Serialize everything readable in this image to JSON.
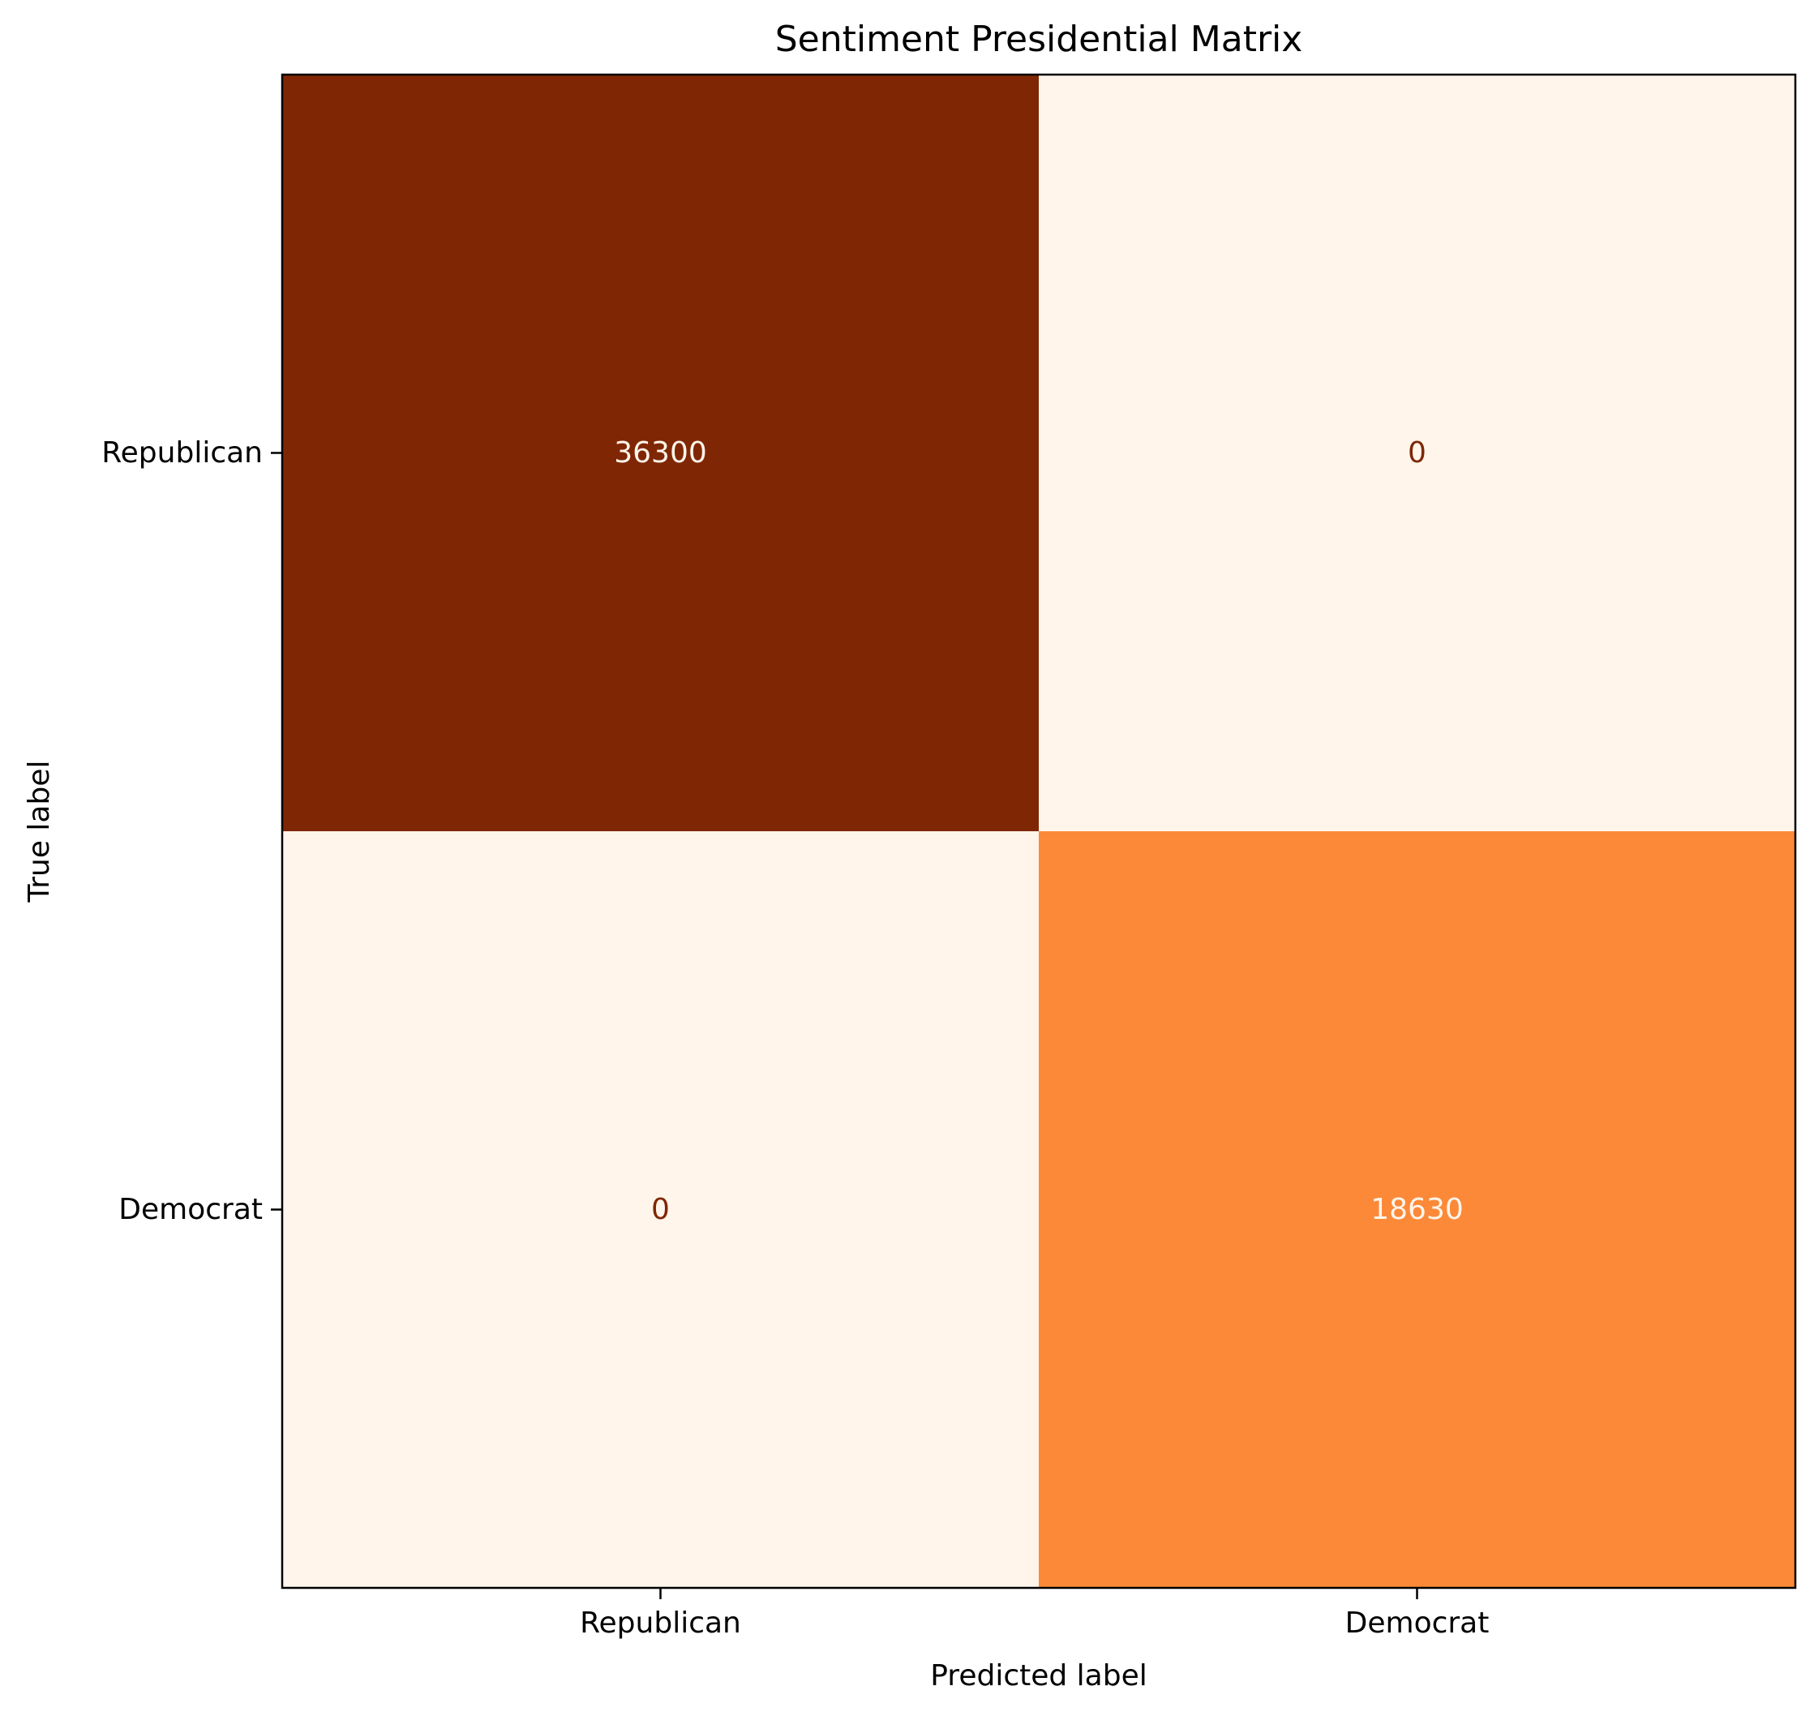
{
  "chart_data": {
    "type": "heatmap",
    "title": "Sentiment Presidential Matrix",
    "xlabel": "Predicted label",
    "ylabel": "True label",
    "x_categories": [
      "Republican",
      "Democrat"
    ],
    "y_categories": [
      "Republican",
      "Democrat"
    ],
    "values": [
      [
        36300,
        0
      ],
      [
        0,
        18630
      ]
    ],
    "colorscale": "Oranges",
    "value_range": [
      0,
      36300
    ],
    "colors": {
      "high": "#7f2704",
      "mid": "#fd8c3b",
      "low": "#fff5eb",
      "text_on_dark": "#fff5eb",
      "text_on_light": "#7f2704"
    },
    "colorbar": false,
    "grid": false
  }
}
